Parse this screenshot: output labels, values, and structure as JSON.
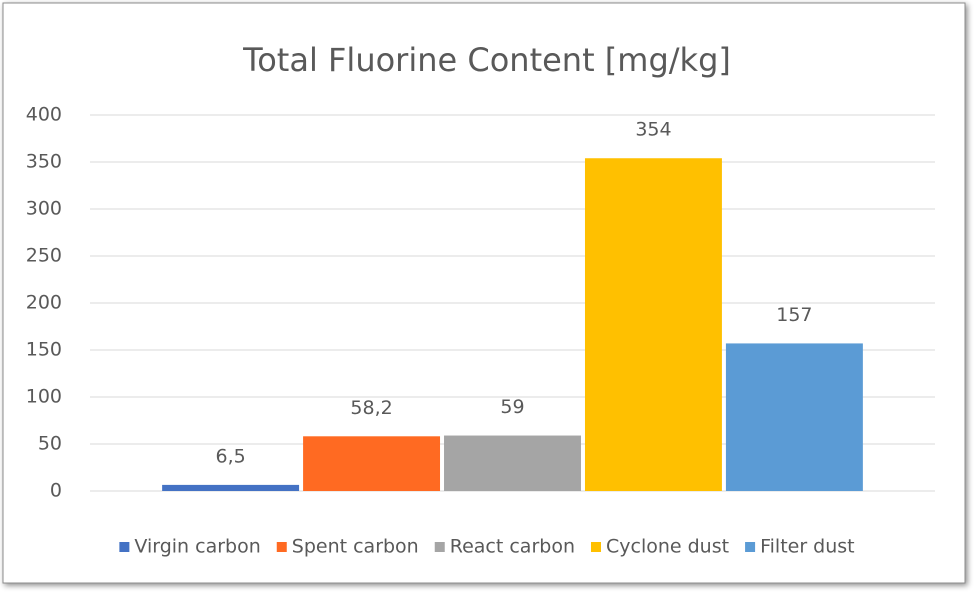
{
  "chart_data": {
    "type": "bar",
    "title": "Total Fluorine Content [mg/kg]",
    "series": [
      {
        "name": "Virgin carbon",
        "color": "#4472c4",
        "values": [
          6.5
        ],
        "value_labels": [
          "6,5"
        ]
      },
      {
        "name": "Spent carbon",
        "color": "#ff6a22",
        "values": [
          58.2
        ],
        "value_labels": [
          "58,2"
        ]
      },
      {
        "name": "React carbon",
        "color": "#a5a5a5",
        "values": [
          59
        ],
        "value_labels": [
          "59"
        ]
      },
      {
        "name": "Cyclone dust",
        "color": "#ffc000",
        "values": [
          354
        ],
        "value_labels": [
          "354"
        ]
      },
      {
        "name": "Filter dust",
        "color": "#5b9bd5",
        "values": [
          157
        ],
        "value_labels": [
          "157"
        ]
      }
    ],
    "ylim": [
      0,
      400
    ],
    "yticks": [
      0,
      50,
      100,
      150,
      200,
      250,
      300,
      350,
      400
    ],
    "grid": true,
    "legend": "bottom"
  }
}
